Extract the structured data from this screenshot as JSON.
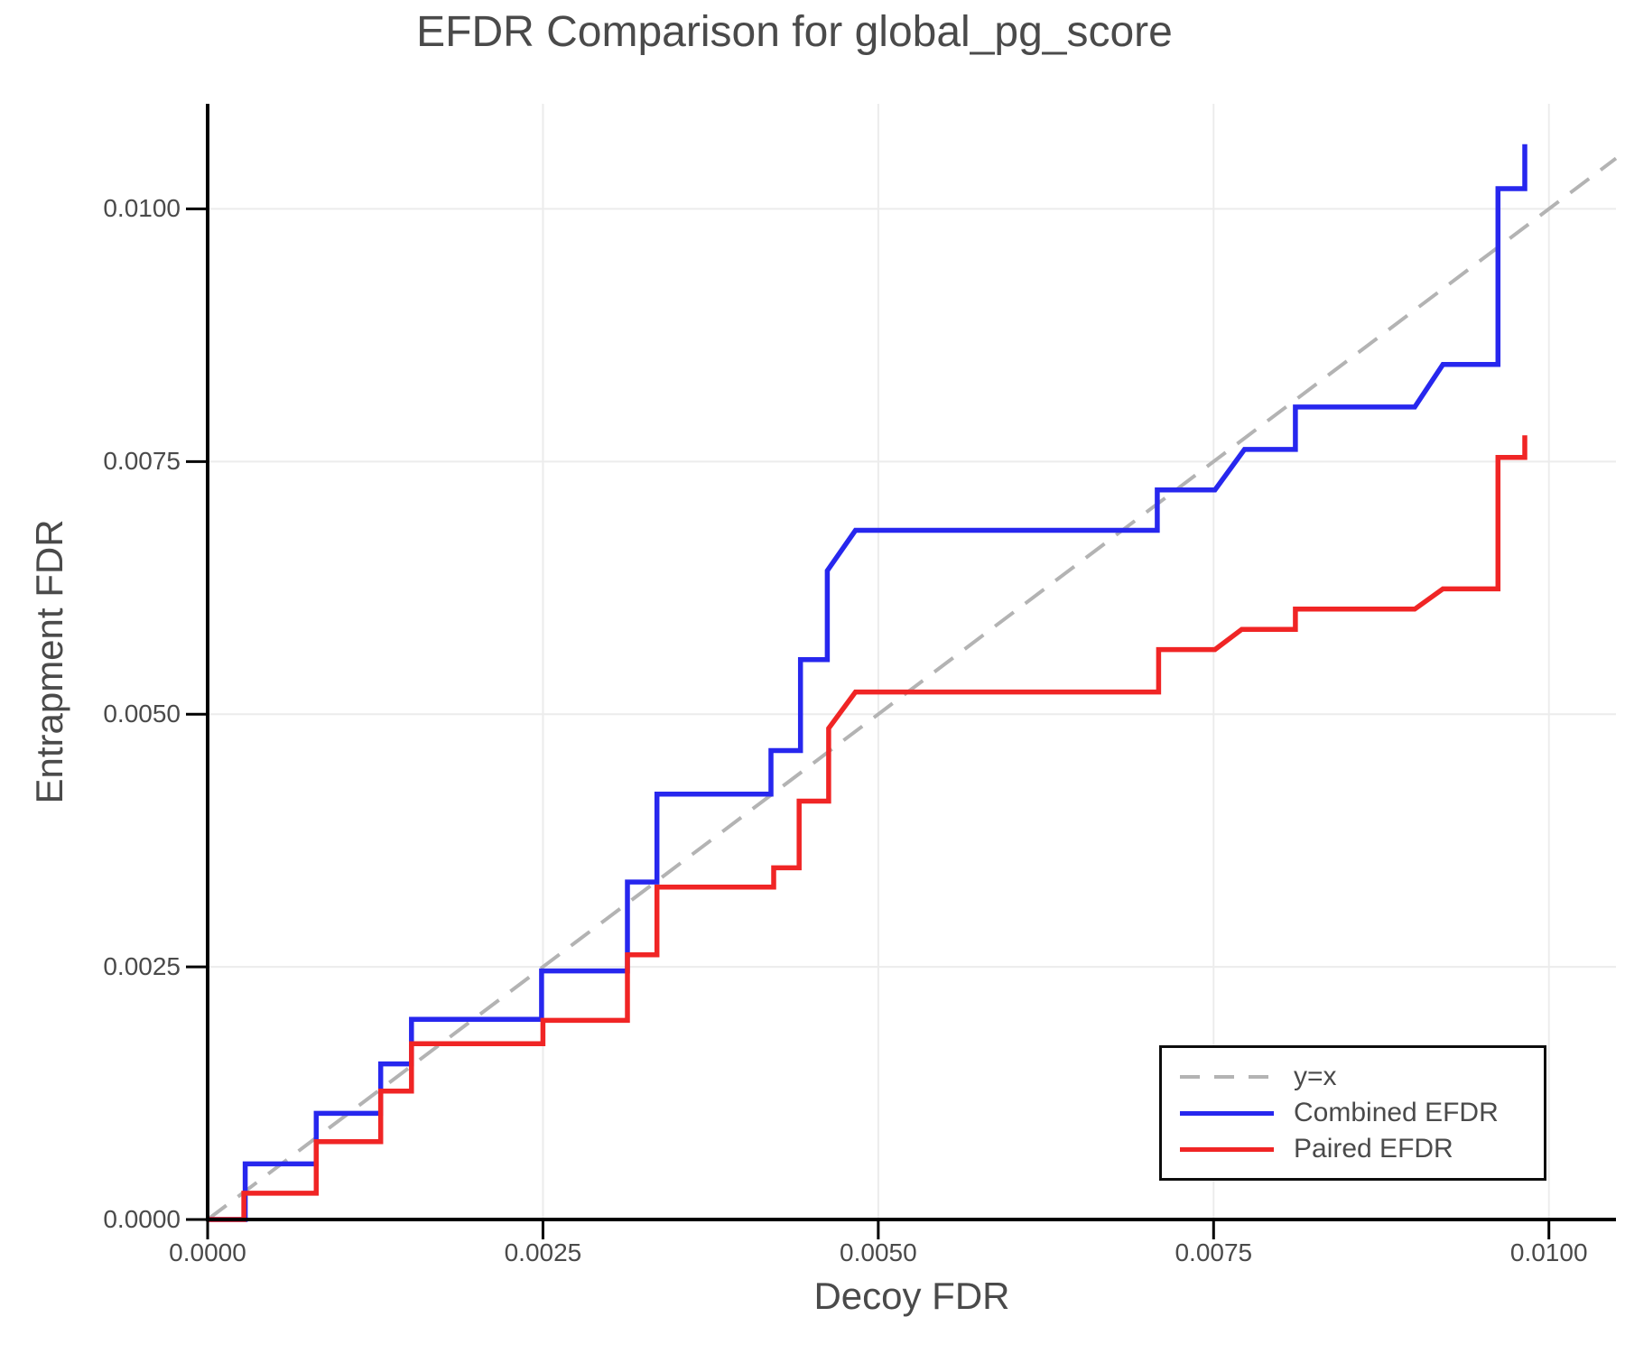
{
  "chart": {
    "title": "EFDR Comparison for global_pg_score",
    "xlabel": "Decoy FDR",
    "ylabel": "Entrapment FDR"
  },
  "legend": {
    "position": "lower right",
    "items": [
      {
        "label": "y=x",
        "swatch": "dashed-gray-line"
      },
      {
        "label": "Combined EFDR",
        "swatch": "solid-blue-line"
      },
      {
        "label": "Paired EFDR",
        "swatch": "solid-red-line"
      }
    ]
  },
  "colors": {
    "combined_efdr": "#2727ee",
    "paired_efdr": "#f02525",
    "identity_line": "#b3b3b3",
    "grid": "#ececec",
    "spine": "#000000",
    "text": "#4a4a4a",
    "legend_border": "#0d0d0d",
    "background": "#ffffff"
  },
  "chart_data": {
    "type": "line",
    "title": "EFDR Comparison for global_pg_score",
    "xlabel": "Decoy FDR",
    "ylabel": "Entrapment FDR",
    "xlim": [
      0.0,
      0.0105
    ],
    "ylim": [
      0.0,
      0.01104
    ],
    "grid": true,
    "legend_position": "lower right",
    "x_ticks": [
      0.0,
      0.0025,
      0.005,
      0.0075,
      0.01
    ],
    "x_tick_labels": [
      "0.0000",
      "0.0025",
      "0.0050",
      "0.0075",
      "0.0100"
    ],
    "y_ticks": [
      0.0,
      0.0025,
      0.005,
      0.0075,
      0.01
    ],
    "y_tick_labels": [
      "0.0000",
      "0.0025",
      "0.0050",
      "0.0075",
      "0.0100"
    ],
    "reference_line": {
      "name": "y=x",
      "style": "dashed",
      "color": "#b3b3b3",
      "points": [
        [
          0.0,
          0.0
        ],
        [
          0.0105,
          0.0105
        ]
      ]
    },
    "series": [
      {
        "name": "Combined EFDR",
        "color": "#2727ee",
        "points": [
          [
            0.0,
            0.0
          ],
          [
            0.00028,
            0.0
          ],
          [
            0.00028,
            0.00055
          ],
          [
            0.00081,
            0.00055
          ],
          [
            0.00081,
            0.00105
          ],
          [
            0.00129,
            0.00105
          ],
          [
            0.00129,
            0.00154
          ],
          [
            0.00152,
            0.00154
          ],
          [
            0.00152,
            0.00198
          ],
          [
            0.00249,
            0.00198
          ],
          [
            0.00249,
            0.00246
          ],
          [
            0.00313,
            0.00246
          ],
          [
            0.00313,
            0.00334
          ],
          [
            0.00335,
            0.00334
          ],
          [
            0.00335,
            0.00421
          ],
          [
            0.0042,
            0.00421
          ],
          [
            0.0042,
            0.00464
          ],
          [
            0.00442,
            0.00464
          ],
          [
            0.00442,
            0.00554
          ],
          [
            0.00462,
            0.00554
          ],
          [
            0.00462,
            0.00642
          ],
          [
            0.00483,
            0.00682
          ],
          [
            0.00708,
            0.00682
          ],
          [
            0.00708,
            0.00722
          ],
          [
            0.00751,
            0.00722
          ],
          [
            0.00773,
            0.00762
          ],
          [
            0.00811,
            0.00762
          ],
          [
            0.00811,
            0.00804
          ],
          [
            0.009,
            0.00804
          ],
          [
            0.00921,
            0.00846
          ],
          [
            0.00962,
            0.00846
          ],
          [
            0.00962,
            0.0102
          ],
          [
            0.00982,
            0.0102
          ],
          [
            0.00982,
            0.01064
          ]
        ]
      },
      {
        "name": "Paired EFDR",
        "color": "#f02525",
        "points": [
          [
            0.0,
            0.0
          ],
          [
            0.00027,
            0.0
          ],
          [
            0.00027,
            0.00026
          ],
          [
            0.00081,
            0.00026
          ],
          [
            0.00081,
            0.00077
          ],
          [
            0.00129,
            0.00077
          ],
          [
            0.00129,
            0.00127
          ],
          [
            0.00152,
            0.00127
          ],
          [
            0.00152,
            0.00174
          ],
          [
            0.0025,
            0.00174
          ],
          [
            0.0025,
            0.00197
          ],
          [
            0.00313,
            0.00197
          ],
          [
            0.00313,
            0.00262
          ],
          [
            0.00335,
            0.00262
          ],
          [
            0.00335,
            0.00329
          ],
          [
            0.00422,
            0.00329
          ],
          [
            0.00422,
            0.00348
          ],
          [
            0.00441,
            0.00348
          ],
          [
            0.00441,
            0.00414
          ],
          [
            0.00463,
            0.00414
          ],
          [
            0.00463,
            0.00486
          ],
          [
            0.00483,
            0.00522
          ],
          [
            0.00709,
            0.00522
          ],
          [
            0.00709,
            0.00564
          ],
          [
            0.00751,
            0.00564
          ],
          [
            0.00771,
            0.00584
          ],
          [
            0.00811,
            0.00584
          ],
          [
            0.00811,
            0.00604
          ],
          [
            0.009,
            0.00604
          ],
          [
            0.00921,
            0.00624
          ],
          [
            0.00962,
            0.00624
          ],
          [
            0.00962,
            0.00754
          ],
          [
            0.00982,
            0.00754
          ],
          [
            0.00982,
            0.00776
          ]
        ]
      }
    ]
  }
}
